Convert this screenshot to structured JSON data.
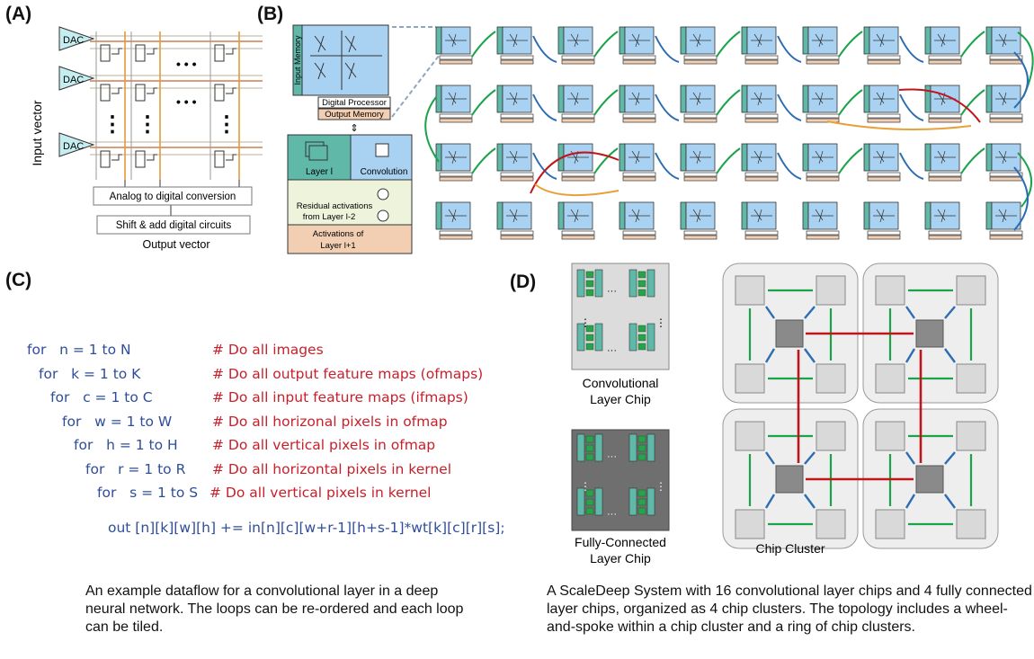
{
  "panels": {
    "a": {
      "label": "(A)",
      "input_label": "Input vector",
      "dac_labels": [
        "DAC",
        "DAC",
        "DAC"
      ],
      "dots_h": "• • •",
      "dots_v": "⋮",
      "adc_label": "Analog to digital conversion",
      "shift_label": "Shift & add digital circuits",
      "output_label": "Output vector"
    },
    "b": {
      "label": "(B)",
      "input_memory": "Input Memory",
      "digital_processor": "Digital Processor",
      "output_memory": "Output Memory",
      "layer_label": "Layer l",
      "convolution_label": "Convolution",
      "residual_label_1": "Residual activations",
      "residual_label_2": "from Layer l-2",
      "activations_label_1": "Activations of",
      "activations_label_2": "Layer l+1"
    },
    "c": {
      "label": "(C)",
      "code": [
        {
          "kw": "for   n = 1 to N",
          "cm": "# Do all images"
        },
        {
          "kw": "for   k = 1 to K",
          "cm": "# Do all output feature maps (ofmaps)"
        },
        {
          "kw": "for   c = 1 to C",
          "cm": "# Do all input feature maps (ifmaps)"
        },
        {
          "kw": "for   w = 1 to W",
          "cm": "# Do all horizonal pixels in ofmap"
        },
        {
          "kw": "for   h = 1 to H",
          "cm": "# Do all vertical pixels in ofmap"
        },
        {
          "kw": "for   r = 1 to R",
          "cm": "# Do all horizontal pixels in kernel"
        },
        {
          "kw": "for   s = 1 to S",
          "cm": "# Do all vertical pixels in kernel"
        }
      ],
      "statement": "out [n][k][w][h] += in[n][c][w+r-1][h+s-1]*wt[k][c][r][s];",
      "caption": "An example dataflow for a convolutional layer in a deep neural network. The loops can be re-ordered and each loop can be tiled."
    },
    "d": {
      "label": "(D)",
      "conv_chip_label_1": "Convolutional",
      "conv_chip_label_2": "Layer Chip",
      "fc_chip_label_1": "Fully-Connected",
      "fc_chip_label_2": "Layer Chip",
      "ellipsis": "···",
      "vdots": "⋮",
      "cluster_label": "Chip Cluster",
      "caption": "A ScaleDeep System with 16 convolutional layer chips and 4 fully connected layer chips, organized as 4 chip clusters. The topology includes a wheel-and-spoke within a chip cluster and a ring of chip clusters."
    }
  },
  "colors": {
    "teal": "#5fb8a8",
    "chip_blue": "#a8d1f2",
    "green_arrow": "#1ba34a",
    "red_arrow": "#c0161b",
    "orange_arrow": "#e8a13a",
    "blue_arrow": "#2b6cb3",
    "memory_peach": "#f2cfb3"
  }
}
